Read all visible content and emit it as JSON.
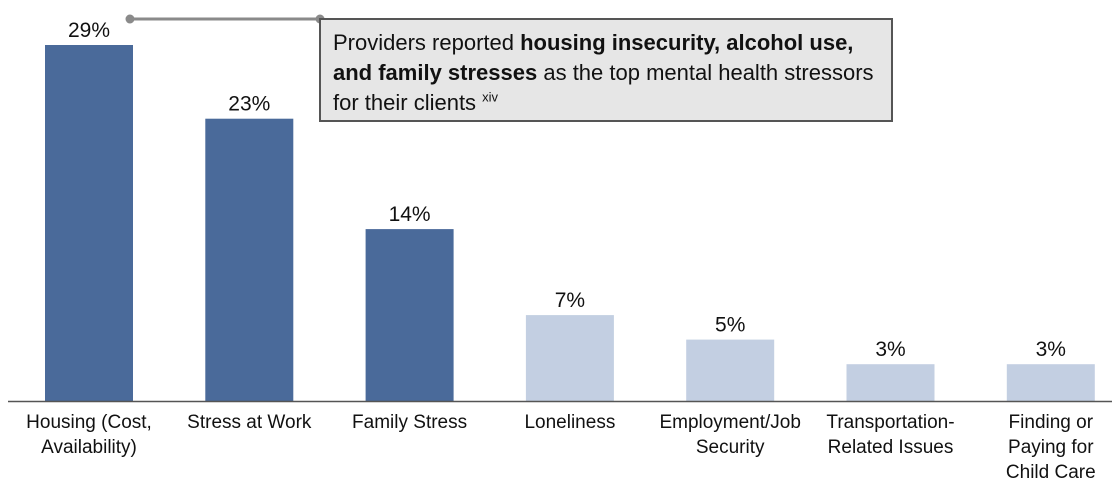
{
  "chart_data": {
    "type": "bar",
    "categories": [
      [
        "Housing (Cost,",
        "Availability)"
      ],
      [
        "Stress at Work"
      ],
      [
        "Family Stress"
      ],
      [
        "Loneliness"
      ],
      [
        "Employment/Job",
        "Security"
      ],
      [
        "Transportation-",
        "Related Issues"
      ],
      [
        "Finding or",
        "Paying for",
        "Child Care"
      ]
    ],
    "values": [
      29,
      23,
      14,
      7,
      5,
      3,
      3
    ],
    "value_labels": [
      "29%",
      "23%",
      "14%",
      "7%",
      "5%",
      "3%",
      "3%"
    ],
    "highlighted": [
      true,
      true,
      true,
      false,
      false,
      false,
      false
    ],
    "colors": {
      "highlight": "#4a6a9a",
      "muted": "#c3cfe2",
      "axis": "#555555",
      "connector": "#8a8a8a"
    },
    "ylim": [
      0,
      32
    ],
    "title": "",
    "xlabel": "",
    "ylabel": ""
  },
  "callout": {
    "prefix": "Providers reported ",
    "bold": "housing insecurity, alcohol use, and family stresses",
    "suffix": " as the top mental health stressors for their clients ",
    "superscript": "xiv"
  }
}
